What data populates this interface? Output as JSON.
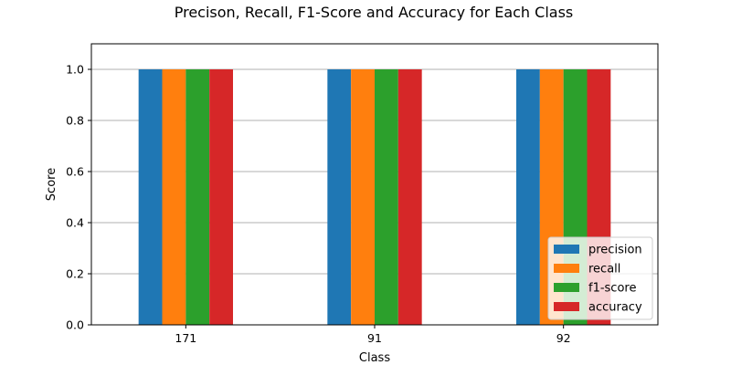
{
  "chart_data": {
    "type": "bar",
    "title": "Precison, Recall, F1-Score and Accuracy for Each Class",
    "xlabel": "Class",
    "ylabel": "Score",
    "categories": [
      "171",
      "91",
      "92"
    ],
    "series": [
      {
        "name": "precision",
        "values": [
          1.0,
          1.0,
          1.0
        ],
        "color": "#1f77b4"
      },
      {
        "name": "recall",
        "values": [
          1.0,
          1.0,
          1.0
        ],
        "color": "#ff7f0e"
      },
      {
        "name": "f1-score",
        "values": [
          1.0,
          1.0,
          1.0
        ],
        "color": "#2ca02c"
      },
      {
        "name": "accuracy",
        "values": [
          1.0,
          1.0,
          1.0
        ],
        "color": "#d62728"
      }
    ],
    "ylim": [
      0,
      1.1
    ],
    "yticks": [
      "0.0",
      "0.2",
      "0.4",
      "0.6",
      "0.8",
      "1.0"
    ],
    "grid": "y",
    "legend_position": "lower-right"
  }
}
